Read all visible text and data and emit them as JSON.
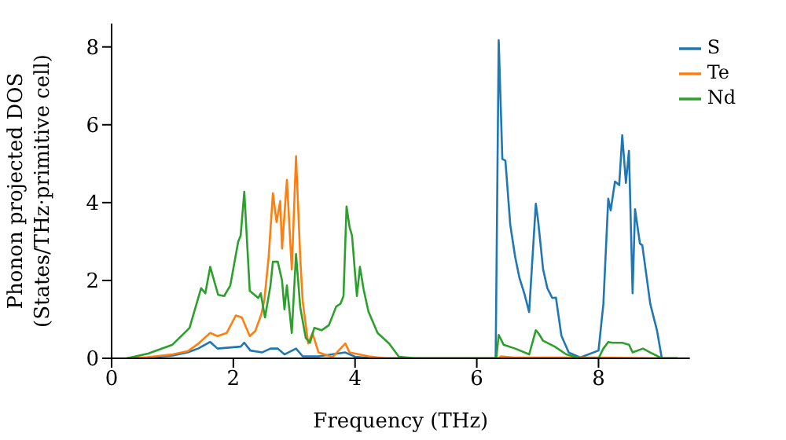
{
  "chart_data": {
    "type": "line",
    "xlabel": "Frequency (THz)",
    "ylabel": "Phonon projected DOS\n(States/THz·primitive cell)",
    "xlim": [
      0,
      9.5
    ],
    "ylim": [
      0,
      8.6
    ],
    "xticks": [
      0,
      2,
      4,
      6,
      8
    ],
    "yticks": [
      0,
      2,
      4,
      6,
      8
    ],
    "grid": false,
    "legend": "top right",
    "marker": "none",
    "line_style": "solid",
    "series": [
      {
        "name": "S",
        "color": "#1f77b4",
        "x": [
          0.25,
          0.6,
          1.0,
          1.25,
          1.42,
          1.62,
          1.74,
          2.12,
          2.18,
          2.28,
          2.47,
          2.61,
          2.73,
          2.84,
          3.03,
          3.14,
          3.4,
          3.84,
          4.0,
          4.3,
          5.0,
          6.0,
          6.31,
          6.36,
          6.42,
          6.47,
          6.55,
          6.63,
          6.7,
          6.78,
          6.86,
          6.97,
          7.01,
          7.09,
          7.16,
          7.24,
          7.3,
          7.39,
          7.51,
          7.7,
          8.0,
          8.08,
          8.16,
          8.2,
          8.27,
          8.34,
          8.39,
          8.45,
          8.5,
          8.56,
          8.6,
          8.68,
          8.72,
          8.85,
          8.96,
          9.04,
          9.3
        ],
        "values": [
          0,
          0.02,
          0.07,
          0.15,
          0.25,
          0.42,
          0.25,
          0.3,
          0.4,
          0.2,
          0.15,
          0.25,
          0.25,
          0.1,
          0.25,
          0.05,
          0.05,
          0.15,
          0.04,
          0,
          0,
          0,
          0,
          8.17,
          5.12,
          5.08,
          3.43,
          2.61,
          2.07,
          1.67,
          1.19,
          3.97,
          3.5,
          2.28,
          1.8,
          1.55,
          1.56,
          0.58,
          0.15,
          0.02,
          0.2,
          1.4,
          4.1,
          3.8,
          4.54,
          4.45,
          5.73,
          4.51,
          5.33,
          1.67,
          3.83,
          2.95,
          2.9,
          1.4,
          0.72,
          0,
          0
        ]
      },
      {
        "name": "Te",
        "color": "#ff7f0e",
        "x": [
          0.25,
          0.6,
          1.0,
          1.25,
          1.42,
          1.62,
          1.74,
          1.89,
          2.04,
          2.14,
          2.27,
          2.36,
          2.46,
          2.51,
          2.58,
          2.65,
          2.71,
          2.77,
          2.8,
          2.88,
          2.96,
          3.03,
          3.1,
          3.14,
          3.23,
          3.3,
          3.4,
          3.63,
          3.84,
          3.91,
          4.22,
          4.5,
          5.0,
          6.0,
          6.35,
          6.4,
          6.6,
          7.0,
          8.0,
          9.0,
          9.3
        ],
        "values": [
          0,
          0.03,
          0.1,
          0.18,
          0.37,
          0.65,
          0.57,
          0.65,
          1.1,
          1.05,
          0.57,
          0.7,
          1.13,
          1.5,
          2.6,
          4.24,
          3.5,
          4.04,
          2.82,
          4.58,
          2.28,
          5.19,
          2.55,
          1.46,
          0.38,
          0.65,
          0.15,
          0.03,
          0.38,
          0.15,
          0.05,
          0,
          0,
          0,
          0,
          0.05,
          0.02,
          0.02,
          0.02,
          0,
          0
        ]
      },
      {
        "name": "Nd",
        "color": "#2ca02c",
        "x": [
          0.25,
          0.6,
          1.0,
          1.28,
          1.47,
          1.54,
          1.62,
          1.75,
          1.85,
          1.95,
          2.08,
          2.12,
          2.18,
          2.27,
          2.41,
          2.45,
          2.52,
          2.61,
          2.65,
          2.73,
          2.8,
          2.84,
          2.88,
          2.96,
          3.03,
          3.1,
          3.19,
          3.26,
          3.33,
          3.45,
          3.57,
          3.69,
          3.76,
          3.81,
          3.86,
          3.91,
          3.95,
          4.03,
          4.08,
          4.14,
          4.22,
          4.37,
          4.56,
          4.72,
          5.0,
          6.0,
          6.32,
          6.36,
          6.44,
          6.63,
          6.86,
          6.97,
          7.01,
          7.09,
          7.28,
          7.47,
          7.7,
          8.0,
          8.08,
          8.16,
          8.23,
          8.39,
          8.5,
          8.56,
          8.73,
          8.85,
          9.04,
          9.3
        ],
        "values": [
          0,
          0.12,
          0.35,
          0.78,
          1.8,
          1.67,
          2.35,
          1.63,
          1.6,
          1.87,
          3.0,
          3.15,
          4.28,
          1.73,
          1.55,
          1.67,
          1.05,
          1.87,
          2.48,
          2.48,
          2.0,
          1.26,
          1.87,
          0.65,
          2.68,
          1.3,
          0.52,
          0.4,
          0.78,
          0.72,
          0.85,
          1.33,
          1.4,
          1.6,
          3.9,
          3.37,
          3.15,
          1.6,
          2.35,
          1.77,
          1.2,
          0.65,
          0.38,
          0.04,
          0,
          0,
          0,
          0.6,
          0.35,
          0.25,
          0.1,
          0.72,
          0.65,
          0.45,
          0.3,
          0.1,
          0,
          0,
          0.25,
          0.42,
          0.4,
          0.4,
          0.35,
          0.15,
          0.25,
          0.15,
          0,
          0
        ]
      }
    ]
  }
}
